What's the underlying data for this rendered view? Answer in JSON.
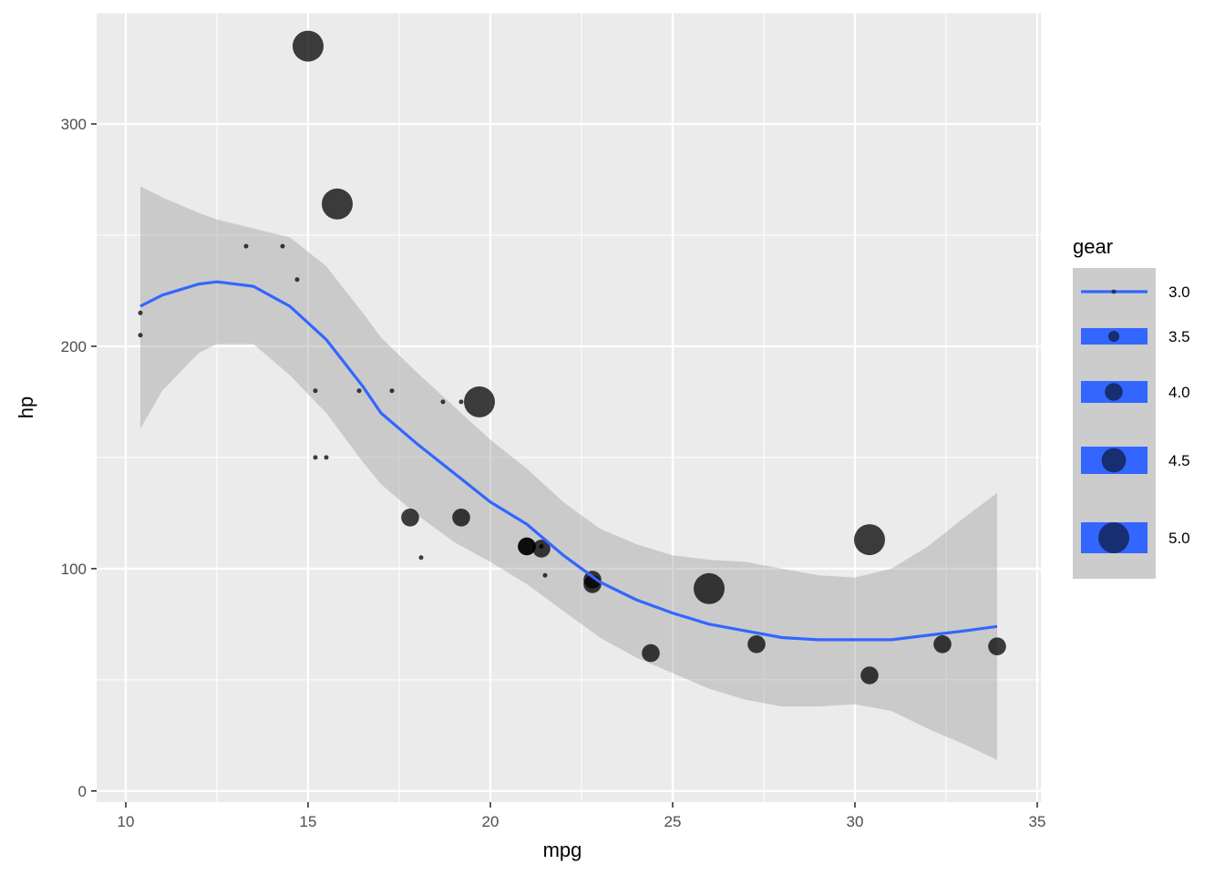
{
  "chart_data": {
    "type": "scatter",
    "xlabel": "mpg",
    "ylabel": "hp",
    "xlim": [
      9.2,
      35.1
    ],
    "ylim": [
      -5,
      350
    ],
    "x_ticks": [
      10,
      15,
      20,
      25,
      30,
      35
    ],
    "x_tick_labels": [
      "10",
      "15",
      "20",
      "25",
      "30",
      "35"
    ],
    "y_ticks": [
      0,
      100,
      200,
      300
    ],
    "y_tick_labels": [
      "0",
      "100",
      "200",
      "300"
    ],
    "grid": true,
    "point_color": "#000000",
    "points": [
      {
        "mpg": 21.0,
        "hp": 110,
        "gear": 4
      },
      {
        "mpg": 21.0,
        "hp": 110,
        "gear": 4
      },
      {
        "mpg": 22.8,
        "hp": 93,
        "gear": 4
      },
      {
        "mpg": 21.4,
        "hp": 110,
        "gear": 3
      },
      {
        "mpg": 18.7,
        "hp": 175,
        "gear": 3
      },
      {
        "mpg": 18.1,
        "hp": 105,
        "gear": 3
      },
      {
        "mpg": 14.3,
        "hp": 245,
        "gear": 3
      },
      {
        "mpg": 24.4,
        "hp": 62,
        "gear": 4
      },
      {
        "mpg": 22.8,
        "hp": 95,
        "gear": 4
      },
      {
        "mpg": 19.2,
        "hp": 123,
        "gear": 4
      },
      {
        "mpg": 17.8,
        "hp": 123,
        "gear": 4
      },
      {
        "mpg": 16.4,
        "hp": 180,
        "gear": 3
      },
      {
        "mpg": 17.3,
        "hp": 180,
        "gear": 3
      },
      {
        "mpg": 15.2,
        "hp": 180,
        "gear": 3
      },
      {
        "mpg": 10.4,
        "hp": 205,
        "gear": 3
      },
      {
        "mpg": 10.4,
        "hp": 215,
        "gear": 3
      },
      {
        "mpg": 14.7,
        "hp": 230,
        "gear": 3
      },
      {
        "mpg": 32.4,
        "hp": 66,
        "gear": 4
      },
      {
        "mpg": 30.4,
        "hp": 52,
        "gear": 4
      },
      {
        "mpg": 33.9,
        "hp": 65,
        "gear": 4
      },
      {
        "mpg": 21.5,
        "hp": 97,
        "gear": 3
      },
      {
        "mpg": 15.5,
        "hp": 150,
        "gear": 3
      },
      {
        "mpg": 15.2,
        "hp": 150,
        "gear": 3
      },
      {
        "mpg": 13.3,
        "hp": 245,
        "gear": 3
      },
      {
        "mpg": 19.2,
        "hp": 175,
        "gear": 3
      },
      {
        "mpg": 27.3,
        "hp": 66,
        "gear": 4
      },
      {
        "mpg": 26.0,
        "hp": 91,
        "gear": 5
      },
      {
        "mpg": 30.4,
        "hp": 113,
        "gear": 5
      },
      {
        "mpg": 15.8,
        "hp": 264,
        "gear": 5
      },
      {
        "mpg": 19.7,
        "hp": 175,
        "gear": 5
      },
      {
        "mpg": 15.0,
        "hp": 335,
        "gear": 5
      },
      {
        "mpg": 21.4,
        "hp": 109,
        "gear": 4
      }
    ],
    "smooth": {
      "method": "loess",
      "color": "#3366FF",
      "band_color": "#999999",
      "curve": [
        {
          "x": 10.4,
          "y": 218,
          "lower": 163,
          "upper": 272
        },
        {
          "x": 11.0,
          "y": 223,
          "lower": 180,
          "upper": 267
        },
        {
          "x": 12.0,
          "y": 228,
          "lower": 197,
          "upper": 260
        },
        {
          "x": 12.5,
          "y": 229,
          "lower": 201,
          "upper": 257
        },
        {
          "x": 13.5,
          "y": 227,
          "lower": 201,
          "upper": 253
        },
        {
          "x": 14.5,
          "y": 218,
          "lower": 187,
          "upper": 249
        },
        {
          "x": 15.5,
          "y": 203,
          "lower": 170,
          "upper": 236
        },
        {
          "x": 16.5,
          "y": 182,
          "lower": 148,
          "upper": 215
        },
        {
          "x": 17.0,
          "y": 170,
          "lower": 138,
          "upper": 204
        },
        {
          "x": 18.0,
          "y": 156,
          "lower": 124,
          "upper": 188
        },
        {
          "x": 19.0,
          "y": 143,
          "lower": 112,
          "upper": 173
        },
        {
          "x": 20.0,
          "y": 130,
          "lower": 103,
          "upper": 158
        },
        {
          "x": 21.0,
          "y": 120,
          "lower": 93,
          "upper": 145
        },
        {
          "x": 22.0,
          "y": 106,
          "lower": 81,
          "upper": 130
        },
        {
          "x": 23.0,
          "y": 94,
          "lower": 69,
          "upper": 118
        },
        {
          "x": 24.0,
          "y": 86,
          "lower": 60,
          "upper": 111
        },
        {
          "x": 25.0,
          "y": 80,
          "lower": 53,
          "upper": 106
        },
        {
          "x": 26.0,
          "y": 75,
          "lower": 46,
          "upper": 104
        },
        {
          "x": 27.0,
          "y": 72,
          "lower": 41,
          "upper": 103
        },
        {
          "x": 28.0,
          "y": 69,
          "lower": 38,
          "upper": 100
        },
        {
          "x": 29.0,
          "y": 68,
          "lower": 38,
          "upper": 97
        },
        {
          "x": 30.0,
          "y": 68,
          "lower": 39,
          "upper": 96
        },
        {
          "x": 31.0,
          "y": 68,
          "lower": 36,
          "upper": 100
        },
        {
          "x": 32.0,
          "y": 70,
          "lower": 28,
          "upper": 110
        },
        {
          "x": 33.0,
          "y": 72,
          "lower": 21,
          "upper": 123
        },
        {
          "x": 33.9,
          "y": 74,
          "lower": 14,
          "upper": 134
        }
      ]
    },
    "legend": {
      "title": "gear",
      "placement": "right",
      "labels": [
        "3.0",
        "3.5",
        "4.0",
        "4.5",
        "5.0"
      ],
      "values": [
        3.0,
        3.5,
        4.0,
        4.5,
        5.0
      ]
    }
  }
}
